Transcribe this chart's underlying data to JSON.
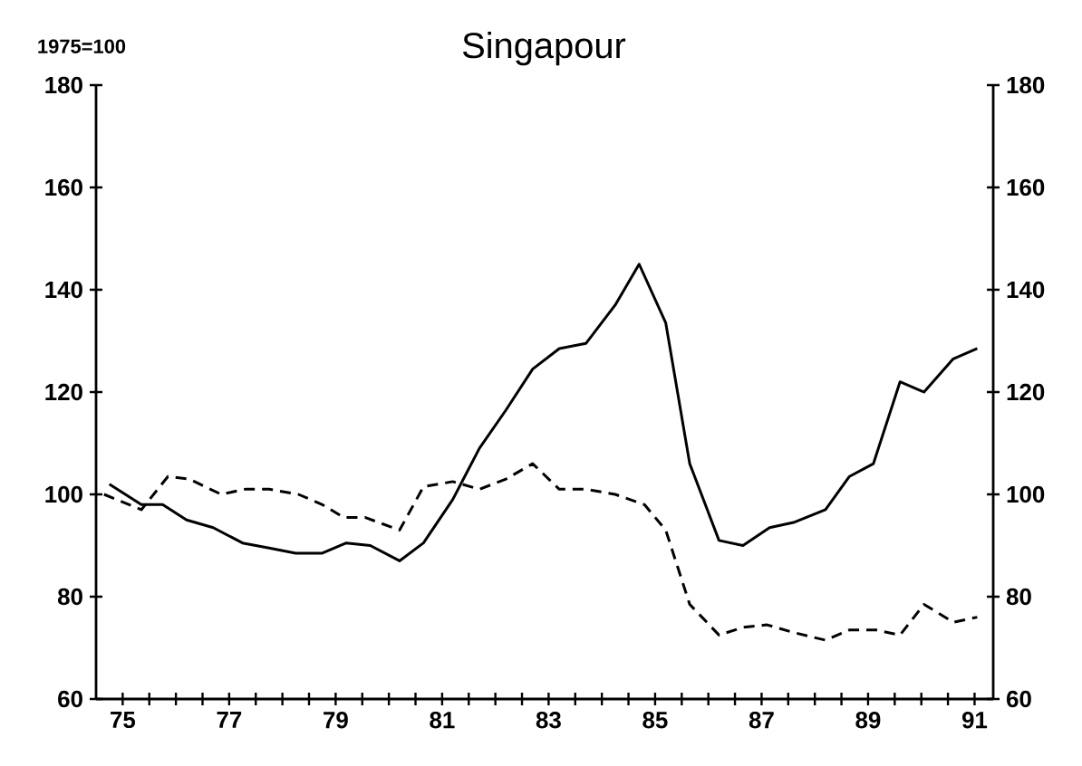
{
  "chart_data": {
    "type": "line",
    "title": "Singapour",
    "ylabel": "1975=100",
    "xlim": [
      1974.5,
      1991.35
    ],
    "ylim": [
      60,
      180
    ],
    "yticks": [
      60,
      80,
      100,
      120,
      140,
      160,
      180
    ],
    "y2lim": [
      60,
      180
    ],
    "y2ticks": [
      60,
      80,
      100,
      120,
      140,
      160,
      180
    ],
    "xticks": [
      {
        "value": 1975,
        "label": "75"
      },
      {
        "value": 1975.5,
        "label": null
      },
      {
        "value": 1976,
        "label": null
      },
      {
        "value": 1976.5,
        "label": null
      },
      {
        "value": 1977,
        "label": "77"
      },
      {
        "value": 1977.5,
        "label": null
      },
      {
        "value": 1978,
        "label": null
      },
      {
        "value": 1978.5,
        "label": null
      },
      {
        "value": 1979,
        "label": "79"
      },
      {
        "value": 1979.5,
        "label": null
      },
      {
        "value": 1980,
        "label": null
      },
      {
        "value": 1980.5,
        "label": null
      },
      {
        "value": 1981,
        "label": "81"
      },
      {
        "value": 1981.5,
        "label": null
      },
      {
        "value": 1982,
        "label": null
      },
      {
        "value": 1982.5,
        "label": null
      },
      {
        "value": 1983,
        "label": "83"
      },
      {
        "value": 1983.5,
        "label": null
      },
      {
        "value": 1984,
        "label": null
      },
      {
        "value": 1984.5,
        "label": null
      },
      {
        "value": 1985,
        "label": "85"
      },
      {
        "value": 1985.5,
        "label": null
      },
      {
        "value": 1986,
        "label": null
      },
      {
        "value": 1986.5,
        "label": null
      },
      {
        "value": 1987,
        "label": "87"
      },
      {
        "value": 1987.5,
        "label": null
      },
      {
        "value": 1988,
        "label": null
      },
      {
        "value": 1988.5,
        "label": null
      },
      {
        "value": 1989,
        "label": "89"
      },
      {
        "value": 1989.5,
        "label": null
      },
      {
        "value": 1990,
        "label": null
      },
      {
        "value": 1990.5,
        "label": null
      },
      {
        "value": 1991,
        "label": "91"
      }
    ],
    "grid": false,
    "legend": false,
    "marker": "none",
    "series": [
      {
        "color": "#000000",
        "line_style": "solid",
        "x": [
          1974.75,
          1975.35,
          1975.75,
          1976.2,
          1976.7,
          1977.25,
          1977.75,
          1978.25,
          1978.75,
          1979.2,
          1979.65,
          1980.2,
          1980.65,
          1981.2,
          1981.7,
          1982.2,
          1982.7,
          1983.2,
          1983.7,
          1984.25,
          1984.7,
          1985.2,
          1985.65,
          1986.2,
          1986.65,
          1987.15,
          1987.6,
          1988.2,
          1988.65,
          1989.1,
          1989.6,
          1990.05,
          1990.6,
          1991.05
        ],
        "values": [
          102,
          98,
          98,
          95,
          93.5,
          90.5,
          89.5,
          88.5,
          88.5,
          90.5,
          90,
          87,
          90.5,
          99,
          109,
          116.5,
          124.5,
          128.5,
          129.5,
          137,
          145,
          133.5,
          106,
          91,
          90,
          93.5,
          94.5,
          97,
          103.5,
          106,
          122,
          120,
          126.5,
          128.5
        ]
      },
      {
        "color": "#000000",
        "line_style": "dashed",
        "x": [
          1974.65,
          1975.35,
          1975.85,
          1976.25,
          1976.85,
          1977.3,
          1977.75,
          1978.3,
          1978.75,
          1979.15,
          1979.55,
          1980.2,
          1980.65,
          1981.2,
          1981.7,
          1982.2,
          1982.7,
          1983.2,
          1983.7,
          1984.25,
          1984.8,
          1985.2,
          1985.65,
          1986.2,
          1986.65,
          1987.1,
          1987.6,
          1988.2,
          1988.65,
          1989.15,
          1989.6,
          1990.05,
          1990.6,
          1991.05
        ],
        "values": [
          100,
          97,
          103.5,
          103,
          100,
          101,
          101,
          100,
          98,
          95.5,
          95.5,
          93,
          101.5,
          102.5,
          101,
          103,
          106,
          101,
          101,
          100,
          98,
          93,
          78.5,
          72.5,
          74,
          74.5,
          73,
          71.5,
          73.5,
          73.5,
          72.5,
          78.5,
          75,
          76
        ]
      }
    ]
  }
}
